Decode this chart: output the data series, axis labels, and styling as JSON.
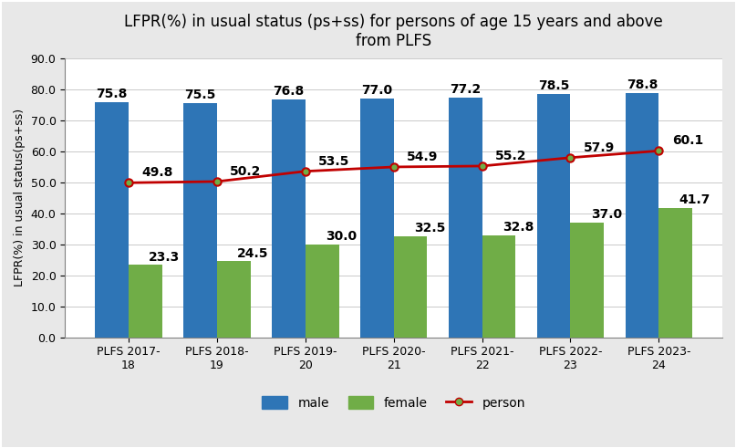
{
  "title": "LFPR(%) in usual status (ps+ss) for persons of age 15 years and above\nfrom PLFS",
  "ylabel": "LFPR(%) in usual status(ps+ss)",
  "categories": [
    "PLFS 2017-\n18",
    "PLFS 2018-\n19",
    "PLFS 2019-\n20",
    "PLFS 2020-\n21",
    "PLFS 2021-\n22",
    "PLFS 2022-\n23",
    "PLFS 2023-\n24"
  ],
  "male": [
    75.8,
    75.5,
    76.8,
    77.0,
    77.2,
    78.5,
    78.8
  ],
  "female": [
    23.3,
    24.5,
    30.0,
    32.5,
    32.8,
    37.0,
    41.7
  ],
  "person": [
    49.8,
    50.2,
    53.5,
    54.9,
    55.2,
    57.9,
    60.1
  ],
  "male_color": "#2E75B6",
  "female_color": "#70AD47",
  "person_color": "#C00000",
  "bar_width": 0.38,
  "ylim": [
    0,
    90
  ],
  "yticks": [
    0.0,
    10.0,
    20.0,
    30.0,
    40.0,
    50.0,
    60.0,
    70.0,
    80.0,
    90.0
  ],
  "title_fontsize": 12,
  "bar_label_fontsize": 10,
  "tick_fontsize": 9,
  "legend_fontsize": 10,
  "background_color": "#FFFFFF",
  "outer_bg": "#E8E8E8"
}
